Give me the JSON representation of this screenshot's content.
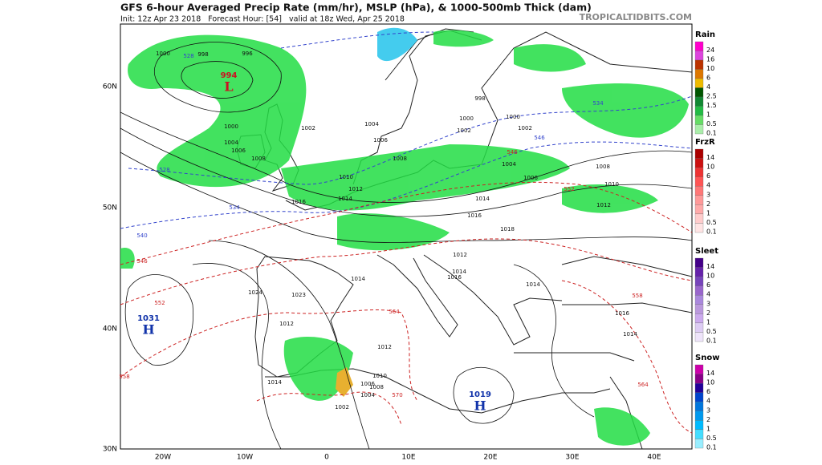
{
  "header": {
    "title": "GFS 6-hour Averaged Precip Rate (mm/hr), MSLP (hPa), & 1000-500mb Thick (dam)",
    "subtitle": "Init: 12z Apr 23 2018   Forecast Hour: [54]   valid at 18z Wed, Apr 25 2018",
    "site": "TROPICALTIDBITS.COM"
  },
  "axes": {
    "lat_labels": [
      "60N",
      "50N",
      "40N",
      "30N"
    ],
    "lon_labels": [
      "20W",
      "10W",
      "0",
      "10E",
      "20E",
      "30E",
      "40E"
    ]
  },
  "centers": [
    {
      "pressure": "994",
      "symbol": "L"
    },
    {
      "pressure": "1031",
      "symbol": "H"
    },
    {
      "pressure": "1019",
      "symbol": "H"
    }
  ],
  "isobar_labels": [
    "1000",
    "996",
    "998",
    "1000",
    "1004",
    "1006",
    "1008",
    "1002",
    "1004",
    "1006",
    "1008",
    "1010",
    "1012",
    "1014",
    "1016",
    "1002",
    "1000",
    "998",
    "1000",
    "1002",
    "1004",
    "1006",
    "1008",
    "1010",
    "1012",
    "1014",
    "1016",
    "1018",
    "1014",
    "1012",
    "1014",
    "1016",
    "1023",
    "1024",
    "1012",
    "1014",
    "1010",
    "1008",
    "1006",
    "1004",
    "1002",
    "1014",
    "1014",
    "1016",
    "1012"
  ],
  "thickness_labels": [
    "528",
    "528",
    "534",
    "540",
    "546",
    "552",
    "558",
    "564",
    "570",
    "546",
    "552",
    "558",
    "564",
    "534",
    "546"
  ],
  "legend": [
    {
      "title": "Rain",
      "ticks": [
        "24",
        "16",
        "10",
        "6",
        "4",
        "2.5",
        "1.5",
        "1",
        "0.5",
        "0.1"
      ]
    },
    {
      "title": "FrzR",
      "ticks": [
        "14",
        "10",
        "6",
        "4",
        "3",
        "2",
        "1",
        "0.5",
        "0.1"
      ]
    },
    {
      "title": "Sleet",
      "ticks": [
        "14",
        "10",
        "6",
        "4",
        "3",
        "2",
        "1",
        "0.5",
        "0.1"
      ]
    },
    {
      "title": "Snow",
      "ticks": [
        "14",
        "10",
        "6",
        "4",
        "3",
        "2",
        "1",
        "0.5",
        "0.1"
      ]
    }
  ]
}
